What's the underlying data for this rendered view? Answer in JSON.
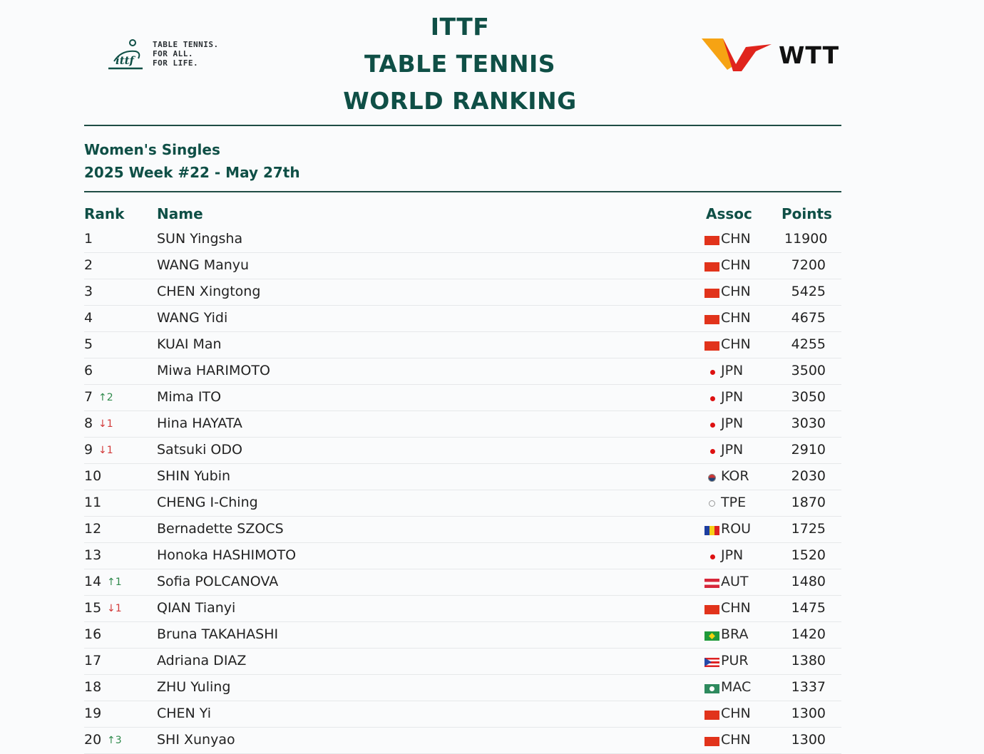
{
  "header": {
    "logo_left": {
      "name": "ITTF",
      "tagline": [
        "TABLE TENNIS.",
        "FOR ALL.",
        "FOR LIFE."
      ]
    },
    "title_lines": [
      "ITTF",
      "TABLE TENNIS",
      "WORLD RANKING"
    ],
    "logo_right": {
      "name": "WTT",
      "colors": [
        "#f6a313",
        "#e0241d"
      ]
    }
  },
  "subtitle": {
    "category": "Women's Singles",
    "week": "2025 Week #22 - May 27th"
  },
  "columns": {
    "rank": "Rank",
    "name": "Name",
    "assoc": "Assoc",
    "points": "Points"
  },
  "colors": {
    "accent": "#0f4f46",
    "up": "#2f8a4c",
    "down": "#d23a3a"
  },
  "rows": [
    {
      "rank": "1",
      "change": "",
      "dir": "",
      "name": "SUN Yingsha",
      "flag": "chn",
      "assoc": "CHN",
      "points": "11900"
    },
    {
      "rank": "2",
      "change": "",
      "dir": "",
      "name": "WANG Manyu",
      "flag": "chn",
      "assoc": "CHN",
      "points": "7200"
    },
    {
      "rank": "3",
      "change": "",
      "dir": "",
      "name": "CHEN Xingtong",
      "flag": "chn",
      "assoc": "CHN",
      "points": "5425"
    },
    {
      "rank": "4",
      "change": "",
      "dir": "",
      "name": "WANG Yidi",
      "flag": "chn",
      "assoc": "CHN",
      "points": "4675"
    },
    {
      "rank": "5",
      "change": "",
      "dir": "",
      "name": "KUAI Man",
      "flag": "chn",
      "assoc": "CHN",
      "points": "4255"
    },
    {
      "rank": "6",
      "change": "",
      "dir": "",
      "name": "Miwa HARIMOTO",
      "flag": "dot",
      "assoc": "JPN",
      "points": "3500"
    },
    {
      "rank": "7",
      "change": "↑2",
      "dir": "up",
      "name": "Mima ITO",
      "flag": "dot",
      "assoc": "JPN",
      "points": "3050"
    },
    {
      "rank": "8",
      "change": "↓1",
      "dir": "down",
      "name": "Hina HAYATA",
      "flag": "dot",
      "assoc": "JPN",
      "points": "3030"
    },
    {
      "rank": "9",
      "change": "↓1",
      "dir": "down",
      "name": "Satsuki ODO",
      "flag": "dot",
      "assoc": "JPN",
      "points": "2910"
    },
    {
      "rank": "10",
      "change": "",
      "dir": "",
      "name": "SHIN Yubin",
      "flag": "kor",
      "assoc": "KOR",
      "points": "2030"
    },
    {
      "rank": "11",
      "change": "",
      "dir": "",
      "name": "CHENG I-Ching",
      "flag": "tpe",
      "assoc": "TPE",
      "points": "1870"
    },
    {
      "rank": "12",
      "change": "",
      "dir": "",
      "name": "Bernadette SZOCS",
      "flag": "rou",
      "assoc": "ROU",
      "points": "1725"
    },
    {
      "rank": "13",
      "change": "",
      "dir": "",
      "name": "Honoka HASHIMOTO",
      "flag": "dot",
      "assoc": "JPN",
      "points": "1520"
    },
    {
      "rank": "14",
      "change": "↑1",
      "dir": "up",
      "name": "Sofia POLCANOVA",
      "flag": "aut",
      "assoc": "AUT",
      "points": "1480"
    },
    {
      "rank": "15",
      "change": "↓1",
      "dir": "down",
      "name": "QIAN Tianyi",
      "flag": "chn",
      "assoc": "CHN",
      "points": "1475"
    },
    {
      "rank": "16",
      "change": "",
      "dir": "",
      "name": "Bruna TAKAHASHI",
      "flag": "bra",
      "assoc": "BRA",
      "points": "1420"
    },
    {
      "rank": "17",
      "change": "",
      "dir": "",
      "name": "Adriana DIAZ",
      "flag": "pur",
      "assoc": "PUR",
      "points": "1380"
    },
    {
      "rank": "18",
      "change": "",
      "dir": "",
      "name": "ZHU Yuling",
      "flag": "mac",
      "assoc": "MAC",
      "points": "1337"
    },
    {
      "rank": "19",
      "change": "",
      "dir": "",
      "name": "CHEN Yi",
      "flag": "chn",
      "assoc": "CHN",
      "points": "1300"
    },
    {
      "rank": "20",
      "change": "↑3",
      "dir": "up",
      "name": "SHI Xunyao",
      "flag": "chn",
      "assoc": "CHN",
      "points": "1300"
    }
  ]
}
